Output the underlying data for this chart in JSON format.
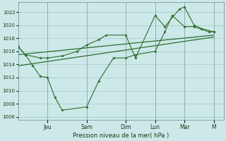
{
  "bg_color": "#cce8e8",
  "grid_color": "#aacece",
  "line_color": "#2d6e2d",
  "xlabel": "Pression niveau de la mer( hPa )",
  "ylim": [
    1005.5,
    1023.5
  ],
  "yticks": [
    1006,
    1008,
    1010,
    1012,
    1014,
    1016,
    1018,
    1020,
    1022
  ],
  "x_day_labels": [
    "Jeu",
    "Sam",
    "Dim",
    "Lun",
    "Mar",
    "M"
  ],
  "x_day_positions": [
    2.0,
    4.667,
    7.333,
    9.333,
    11.333,
    13.333
  ],
  "xlim": [
    0,
    14
  ],
  "series1_x": [
    0.0,
    0.5,
    1.0,
    1.5,
    2.0,
    2.5,
    3.0,
    4.667,
    5.5,
    6.5,
    7.333,
    8.0,
    9.333,
    10.0,
    10.5,
    11.333,
    12.0,
    13.0,
    13.333
  ],
  "series1_y": [
    1016.7,
    1015.5,
    1013.8,
    1012.2,
    1012.0,
    1009.0,
    1007.0,
    1007.5,
    1011.5,
    1015.0,
    1015.0,
    1015.5,
    1016.0,
    1019.0,
    1021.5,
    1019.8,
    1019.8,
    1019.0,
    1019.0
  ],
  "series2_x": [
    0.0,
    0.5,
    1.5,
    2.0,
    3.0,
    4.0,
    4.667,
    5.5,
    6.0,
    7.333,
    8.0,
    9.333,
    10.0,
    11.0,
    11.333,
    12.0,
    12.5,
    13.333
  ],
  "series2_y": [
    1016.7,
    1015.5,
    1015.0,
    1015.0,
    1015.3,
    1016.0,
    1017.0,
    1017.8,
    1018.5,
    1018.5,
    1015.0,
    1021.5,
    1019.8,
    1022.5,
    1022.8,
    1020.0,
    1019.5,
    1019.0
  ],
  "trend1_x": [
    0.0,
    13.333
  ],
  "trend1_y": [
    1015.5,
    1018.5
  ],
  "trend2_x": [
    0.0,
    13.333
  ],
  "trend2_y": [
    1013.8,
    1018.2
  ]
}
